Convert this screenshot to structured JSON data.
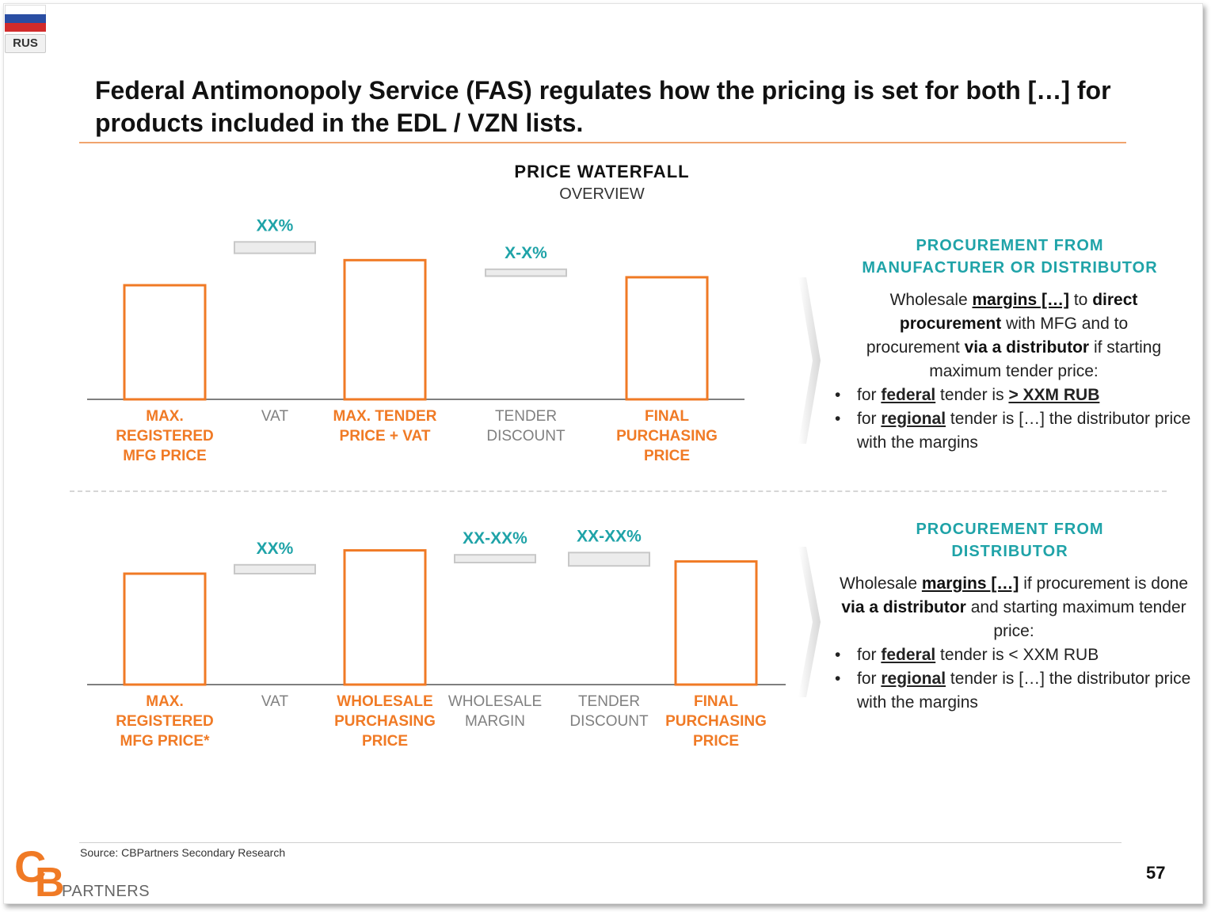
{
  "flag": {
    "code": "RUS"
  },
  "title": "Federal Antimonopoly Service (FAS) regulates how the pricing is set for both […] for products included in the EDL / VZN lists.",
  "chart_title": {
    "main": "PRICE WATERFALL",
    "sub": "OVERVIEW"
  },
  "colors": {
    "accent": "#f07a25",
    "teal": "#1fa3a8",
    "gray_box": "#ececec",
    "label_gray": "#808080"
  },
  "chart_data": [
    {
      "type": "bar",
      "title": "",
      "columns": [
        {
          "label": "MAX. REGISTERED MFG PRICE",
          "kind": "total",
          "value": 100
        },
        {
          "label": "VAT",
          "kind": "step",
          "annotation": "XX%",
          "from": 128,
          "to": 138
        },
        {
          "label": "MAX. TENDER PRICE + VAT",
          "kind": "total",
          "value": 122
        },
        {
          "label": "TENDER DISCOUNT",
          "kind": "step",
          "annotation": "X-X%",
          "from": 108,
          "to": 114
        },
        {
          "label": "FINAL PURCHASING PRICE",
          "kind": "total",
          "value": 107
        }
      ],
      "ylim": [
        0,
        150
      ]
    },
    {
      "type": "bar",
      "title": "",
      "columns": [
        {
          "label": "MAX. REGISTERED MFG PRICE*",
          "kind": "total",
          "value": 100
        },
        {
          "label": "VAT",
          "kind": "step",
          "annotation": "XX%",
          "from": 100,
          "to": 108
        },
        {
          "label": "WHOLESALE PURCHASING PRICE",
          "kind": "total",
          "value": 121
        },
        {
          "label": "WHOLESALE MARGIN",
          "kind": "step",
          "annotation": "XX-XX%",
          "from": 110,
          "to": 117
        },
        {
          "label": "TENDER DISCOUNT",
          "kind": "step",
          "annotation": "XX-XX%",
          "from": 107,
          "to": 119
        },
        {
          "label": "FINAL PURCHASING PRICE",
          "kind": "total",
          "value": 111
        }
      ],
      "ylim": [
        0,
        150
      ]
    }
  ],
  "panels": [
    {
      "heading_line1": "PROCUREMENT FROM",
      "heading_line2": "MANUFACTURER OR DISTRIBUTOR",
      "intro_a": "Wholesale ",
      "intro_b": "margins […]",
      "intro_c": " to ",
      "intro_d": "direct procurement",
      "intro_e": " with MFG and to procurement ",
      "intro_f": "via a distributor",
      "intro_g": " if starting maximum tender price:",
      "bullet1_a": "for ",
      "bullet1_b": "federal",
      "bullet1_c": " tender is ",
      "bullet1_d": "> XXM RUB",
      "bullet2_a": "for ",
      "bullet2_b": "regional",
      "bullet2_c": " tender is […] the distributor price with the margins"
    },
    {
      "heading_line1": "PROCUREMENT FROM",
      "heading_line2": "DISTRIBUTOR",
      "intro_a": "Wholesale ",
      "intro_b": "margins […]",
      "intro_c": " if procurement is done ",
      "intro_d": "via a distributor",
      "intro_e": " and starting maximum tender price:",
      "bullet1_a": "for ",
      "bullet1_b": "federal",
      "bullet1_c": " tender is < XXM RUB",
      "bullet2_a": "for ",
      "bullet2_b": "regional",
      "bullet2_c": " tender is […] the distributor price with the margins"
    }
  ],
  "footer": {
    "source": "Source: CBPartners Secondary Research",
    "page_number": "57"
  },
  "logo": {
    "letter_c": "C",
    "letter_b": "B",
    "text": "PARTNERS"
  }
}
